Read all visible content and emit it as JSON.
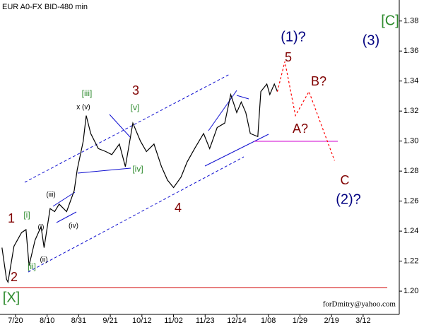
{
  "chart_data": {
    "type": "line",
    "title": "EUR A0-FX BID-480 min",
    "watermark": "forDmitry@yahoo.com",
    "xlim": [
      -10.3,
      255
    ],
    "ylim": [
      1.1845,
      1.394
    ],
    "xticks": [
      {
        "value": 0,
        "label": "7/20"
      },
      {
        "value": 21,
        "label": "8/10"
      },
      {
        "value": 42,
        "label": "8/31"
      },
      {
        "value": 63,
        "label": "9/21"
      },
      {
        "value": 84,
        "label": "10/12"
      },
      {
        "value": 105,
        "label": "11/02"
      },
      {
        "value": 126,
        "label": "11/23"
      },
      {
        "value": 147,
        "label": "12/14"
      },
      {
        "value": 168,
        "label": "1/08"
      },
      {
        "value": 189,
        "label": "1/29"
      },
      {
        "value": 210,
        "label": "2/19"
      },
      {
        "value": 231,
        "label": "3/12"
      }
    ],
    "yticks": [
      {
        "value": 1.2,
        "label": "1.20"
      },
      {
        "value": 1.22,
        "label": "1.22"
      },
      {
        "value": 1.24,
        "label": "1.24"
      },
      {
        "value": 1.26,
        "label": "1.26"
      },
      {
        "value": 1.28,
        "label": "1.28"
      },
      {
        "value": 1.3,
        "label": "1.30"
      },
      {
        "value": 1.32,
        "label": "1.32"
      },
      {
        "value": 1.34,
        "label": "1.34"
      },
      {
        "value": 1.36,
        "label": "1.36"
      },
      {
        "value": 1.38,
        "label": "1.38"
      }
    ],
    "series": [
      {
        "color": "#000000",
        "dashed": false,
        "x": [
          -9,
          -6,
          -5,
          -1,
          4,
          7,
          9,
          13,
          17,
          19,
          23,
          26,
          29,
          34,
          39,
          41,
          45,
          47,
          50,
          55,
          60,
          64,
          69,
          73,
          78,
          83,
          87,
          92,
          97,
          101,
          105,
          110,
          114,
          119,
          125,
          129,
          134,
          139,
          143,
          147,
          150,
          153,
          156,
          161,
          163,
          167,
          169,
          172,
          174
        ],
        "values": [
          1.229,
          1.208,
          1.206,
          1.23,
          1.239,
          1.241,
          1.217,
          1.234,
          1.243,
          1.229,
          1.255,
          1.253,
          1.258,
          1.253,
          1.267,
          1.281,
          1.3,
          1.317,
          1.305,
          1.295,
          1.293,
          1.291,
          1.298,
          1.283,
          1.312,
          1.3,
          1.293,
          1.298,
          1.283,
          1.274,
          1.269,
          1.276,
          1.286,
          1.295,
          1.305,
          1.295,
          1.309,
          1.312,
          1.331,
          1.319,
          1.326,
          1.319,
          1.305,
          1.303,
          1.333,
          1.338,
          1.331,
          1.338,
          1.333
        ]
      },
      {
        "color": "#ff0000",
        "dashed": true,
        "x": [
          174,
          179,
          186,
          195,
          212
        ],
        "values": [
          1.333,
          1.353,
          1.317,
          1.333,
          1.287
        ]
      }
    ],
    "annotations": [
      {
        "text": "1",
        "color": "#800000"
      },
      {
        "text": "[i]",
        "color": "#2e8b2e"
      },
      {
        "text": "2",
        "color": "#800000"
      },
      {
        "text": "[ii]",
        "color": "#2e8b2e"
      },
      {
        "text": "(i)",
        "color": "#000000"
      },
      {
        "text": "(ii)",
        "color": "#000000"
      },
      {
        "text": "(iii)",
        "color": "#000000"
      },
      {
        "text": "(iv)",
        "color": "#000000"
      },
      {
        "text": "x (v)",
        "color": "#000000"
      },
      {
        "text": "[iii]",
        "color": "#2e8b2e"
      },
      {
        "text": "3",
        "color": "#800000"
      },
      {
        "text": "[v]",
        "color": "#2e8b2e"
      },
      {
        "text": "[iv]",
        "color": "#2e8b2e"
      },
      {
        "text": "4",
        "color": "#800000"
      },
      {
        "text": "5",
        "color": "#800000"
      },
      {
        "text": "(1)?",
        "color": "#000080"
      },
      {
        "text": "(3)",
        "color": "#000080"
      },
      {
        "text": "[C]",
        "color": "#2e8b2e"
      },
      {
        "text": "A?",
        "color": "#800000"
      },
      {
        "text": "B?",
        "color": "#800000"
      },
      {
        "text": "C",
        "color": "#800000"
      },
      {
        "text": "(2)?",
        "color": "#000080"
      },
      {
        "text": "[X]",
        "color": "#2e8b2e"
      }
    ]
  }
}
